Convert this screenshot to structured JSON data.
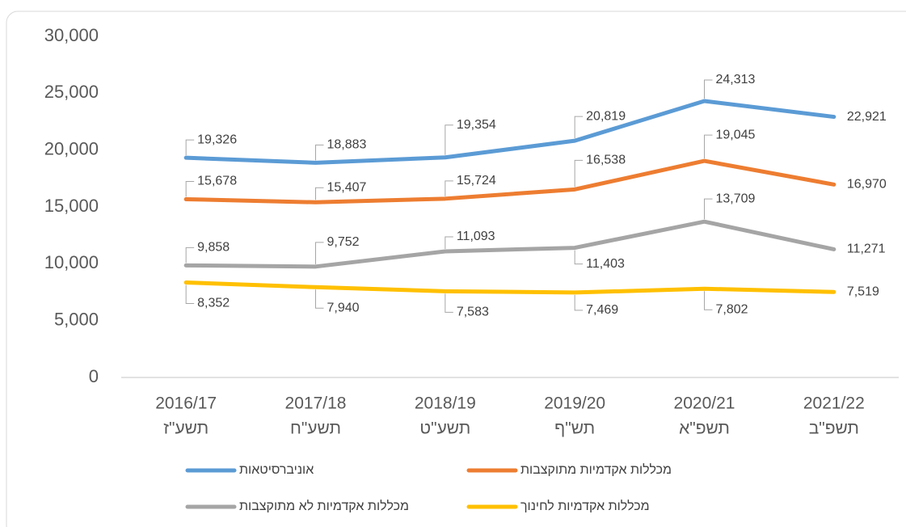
{
  "chart_data": {
    "type": "line",
    "categories": [
      [
        "2016/17",
        "תשע\"ז"
      ],
      [
        "2017/18",
        "תשע\"ח"
      ],
      [
        "2018/19",
        "תשע\"ט"
      ],
      [
        "2019/20",
        "תש\"ף"
      ],
      [
        "2020/21",
        "תשפ\"א"
      ],
      [
        "2021/22",
        "תשפ\"ב"
      ]
    ],
    "series": [
      {
        "name": "אוניברסיטאות",
        "color": "#5b9bd5",
        "values": [
          19326,
          18883,
          19354,
          20819,
          24313,
          22921
        ],
        "value_labels": [
          "19,326",
          "18,883",
          "19,354",
          "20,819",
          "24,313",
          "22,921"
        ]
      },
      {
        "name": "מכללות אקדמיות מתוקצבות",
        "color": "#ed7d31",
        "values": [
          15678,
          15407,
          15724,
          16538,
          19045,
          16970
        ],
        "value_labels": [
          "15,678",
          "15,407",
          "15,724",
          "16,538",
          "19,045",
          "16,970"
        ]
      },
      {
        "name": "מכללות אקדמיות לא מתוקצבות",
        "color": "#a5a5a5",
        "values": [
          9858,
          9752,
          11093,
          11403,
          13709,
          11271
        ],
        "value_labels": [
          "9,858",
          "9,752",
          "11,093",
          "11,403",
          "13,709",
          "11,271"
        ]
      },
      {
        "name": "מכללות אקדמיות לחינוך",
        "color": "#ffc000",
        "values": [
          8352,
          7940,
          7583,
          7469,
          7802,
          7519
        ],
        "value_labels": [
          "8,352",
          "7,940",
          "7,583",
          "7,469",
          "7,802",
          "7,519"
        ]
      }
    ],
    "ylim": [
      0,
      30000
    ],
    "yticks": [
      0,
      {
        "value": 5000,
        "label": "5,000"
      },
      {
        "value": 10000,
        "label": "10,000"
      },
      {
        "value": 15000,
        "label": "15,000"
      },
      {
        "value": 20000,
        "label": "20,000"
      },
      {
        "value": 25000,
        "label": "25,000"
      },
      {
        "value": 30000,
        "label": "30,000"
      }
    ],
    "grid": false
  }
}
